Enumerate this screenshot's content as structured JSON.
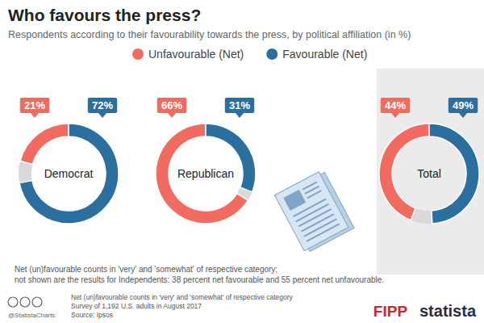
{
  "chart_data": {
    "type": "pie",
    "title": "Who favours the press?",
    "subtitle": "Respondents according to their favourability towards the press, by political affiliation (in %)",
    "categories": [
      "Democrat",
      "Republican",
      "Total"
    ],
    "series": [
      {
        "name": "Unfavourable (Net)",
        "color": "#f26b60",
        "values": [
          21,
          66,
          44
        ],
        "value_labels": [
          "21%",
          "66%",
          "44%"
        ]
      },
      {
        "name": "Favourable (Net)",
        "color": "#2b6f9e",
        "values": [
          72,
          31,
          49
        ],
        "value_labels": [
          "72%",
          "31%",
          "49%"
        ]
      }
    ],
    "ylim": [
      0,
      100
    ],
    "data_labels": true,
    "legend": "top",
    "footnote": [
      "Net (un)favourable counts in 'very' and 'somewhat' of respective category;",
      "not shown are the results for Independents: 38 percent net favourable and 55 percent net unfavourable."
    ],
    "credit": "@StatistaCharts",
    "survey_note": [
      "Net (un)favourable counts in 'very' and 'somewhat' of respective category",
      "Survey of 1,192 U.S. adults in August 2017"
    ],
    "source": "Source: Ipsos",
    "logos": [
      "FIPP",
      "statista"
    ]
  }
}
